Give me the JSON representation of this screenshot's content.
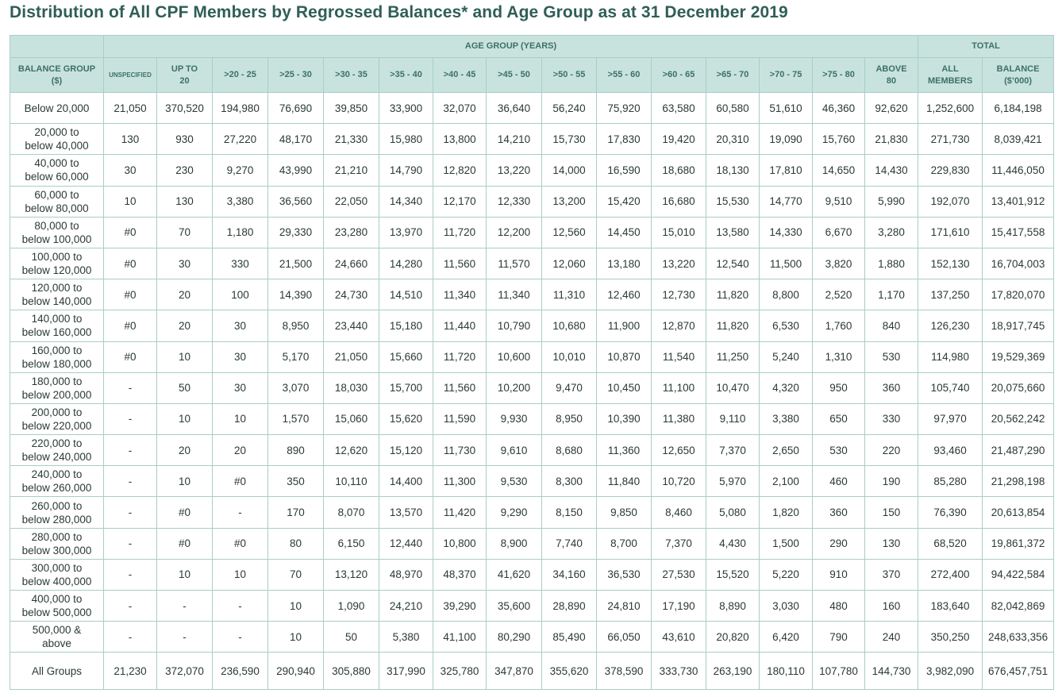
{
  "title": "Distribution of All CPF Members by Regrossed Balances* and Age Group as at 31 December 2019",
  "header": {
    "age_group": "AGE GROUP (YEARS)",
    "total": "TOTAL",
    "balance_group_line1": "BALANCE GROUP",
    "balance_group_line2": "($)",
    "columns": [
      {
        "l1": "UNSPECIFIED",
        "l2": ""
      },
      {
        "l1": "UP TO",
        "l2": "20"
      },
      {
        "l1": ">20 - 25",
        "l2": ""
      },
      {
        "l1": ">25 - 30",
        "l2": ""
      },
      {
        "l1": ">30 - 35",
        "l2": ""
      },
      {
        "l1": ">35 - 40",
        "l2": ""
      },
      {
        "l1": ">40 - 45",
        "l2": ""
      },
      {
        "l1": ">45 - 50",
        "l2": ""
      },
      {
        "l1": ">50 - 55",
        "l2": ""
      },
      {
        "l1": ">55 - 60",
        "l2": ""
      },
      {
        "l1": ">60 - 65",
        "l2": ""
      },
      {
        "l1": ">65 - 70",
        "l2": ""
      },
      {
        "l1": ">70 - 75",
        "l2": ""
      },
      {
        "l1": ">75 - 80",
        "l2": ""
      },
      {
        "l1": "ABOVE",
        "l2": "80"
      },
      {
        "l1": "ALL",
        "l2": "MEMBERS"
      },
      {
        "l1": "BALANCE",
        "l2": "($’000)"
      }
    ]
  },
  "rows": [
    {
      "label1": "Below 20,000",
      "label2": "",
      "values": [
        "21,050",
        "370,520",
        "194,980",
        "76,690",
        "39,850",
        "33,900",
        "32,070",
        "36,640",
        "56,240",
        "75,920",
        "63,580",
        "60,580",
        "51,610",
        "46,360",
        "92,620",
        "1,252,600",
        "6,184,198"
      ]
    },
    {
      "label1": "20,000 to",
      "label2": "below 40,000",
      "values": [
        "130",
        "930",
        "27,220",
        "48,170",
        "21,330",
        "15,980",
        "13,800",
        "14,210",
        "15,730",
        "17,830",
        "19,420",
        "20,310",
        "19,090",
        "15,760",
        "21,830",
        "271,730",
        "8,039,421"
      ]
    },
    {
      "label1": "40,000 to",
      "label2": "below 60,000",
      "values": [
        "30",
        "230",
        "9,270",
        "43,990",
        "21,210",
        "14,790",
        "12,820",
        "13,220",
        "14,000",
        "16,590",
        "18,680",
        "18,130",
        "17,810",
        "14,650",
        "14,430",
        "229,830",
        "11,446,050"
      ]
    },
    {
      "label1": "60,000 to",
      "label2": "below 80,000",
      "values": [
        "10",
        "130",
        "3,380",
        "36,560",
        "22,050",
        "14,340",
        "12,170",
        "12,330",
        "13,200",
        "15,420",
        "16,680",
        "15,530",
        "14,770",
        "9,510",
        "5,990",
        "192,070",
        "13,401,912"
      ]
    },
    {
      "label1": "80,000 to",
      "label2": "below 100,000",
      "values": [
        "#0",
        "70",
        "1,180",
        "29,330",
        "23,280",
        "13,970",
        "11,720",
        "12,200",
        "12,560",
        "14,450",
        "15,010",
        "13,580",
        "14,330",
        "6,670",
        "3,280",
        "171,610",
        "15,417,558"
      ]
    },
    {
      "label1": "100,000 to",
      "label2": "below 120,000",
      "values": [
        "#0",
        "30",
        "330",
        "21,500",
        "24,660",
        "14,280",
        "11,560",
        "11,570",
        "12,060",
        "13,180",
        "13,220",
        "12,540",
        "11,500",
        "3,820",
        "1,880",
        "152,130",
        "16,704,003"
      ]
    },
    {
      "label1": "120,000 to",
      "label2": "below 140,000",
      "values": [
        "#0",
        "20",
        "100",
        "14,390",
        "24,730",
        "14,510",
        "11,340",
        "11,340",
        "11,310",
        "12,460",
        "12,730",
        "11,820",
        "8,800",
        "2,520",
        "1,170",
        "137,250",
        "17,820,070"
      ]
    },
    {
      "label1": "140,000 to",
      "label2": "below 160,000",
      "values": [
        "#0",
        "20",
        "30",
        "8,950",
        "23,440",
        "15,180",
        "11,440",
        "10,790",
        "10,680",
        "11,900",
        "12,870",
        "11,820",
        "6,530",
        "1,760",
        "840",
        "126,230",
        "18,917,745"
      ]
    },
    {
      "label1": "160,000 to",
      "label2": "below 180,000",
      "values": [
        "#0",
        "10",
        "30",
        "5,170",
        "21,050",
        "15,660",
        "11,720",
        "10,600",
        "10,010",
        "10,870",
        "11,540",
        "11,250",
        "5,240",
        "1,310",
        "530",
        "114,980",
        "19,529,369"
      ]
    },
    {
      "label1": "180,000 to",
      "label2": "below 200,000",
      "values": [
        "-",
        "50",
        "30",
        "3,070",
        "18,030",
        "15,700",
        "11,560",
        "10,200",
        "9,470",
        "10,450",
        "11,100",
        "10,470",
        "4,320",
        "950",
        "360",
        "105,740",
        "20,075,660"
      ]
    },
    {
      "label1": "200,000 to",
      "label2": "below 220,000",
      "values": [
        "-",
        "10",
        "10",
        "1,570",
        "15,060",
        "15,620",
        "11,590",
        "9,930",
        "8,950",
        "10,390",
        "11,380",
        "9,110",
        "3,380",
        "650",
        "330",
        "97,970",
        "20,562,242"
      ]
    },
    {
      "label1": "220,000 to",
      "label2": "below 240,000",
      "values": [
        "-",
        "20",
        "20",
        "890",
        "12,620",
        "15,120",
        "11,730",
        "9,610",
        "8,680",
        "11,360",
        "12,650",
        "7,370",
        "2,650",
        "530",
        "220",
        "93,460",
        "21,487,290"
      ]
    },
    {
      "label1": "240,000 to",
      "label2": "below 260,000",
      "values": [
        "-",
        "10",
        "#0",
        "350",
        "10,110",
        "14,400",
        "11,300",
        "9,530",
        "8,300",
        "11,840",
        "10,720",
        "5,970",
        "2,100",
        "460",
        "190",
        "85,280",
        "21,298,198"
      ]
    },
    {
      "label1": "260,000 to",
      "label2": "below 280,000",
      "values": [
        "-",
        "#0",
        "-",
        "170",
        "8,070",
        "13,570",
        "11,420",
        "9,290",
        "8,150",
        "9,850",
        "8,460",
        "5,080",
        "1,820",
        "360",
        "150",
        "76,390",
        "20,613,854"
      ]
    },
    {
      "label1": "280,000 to",
      "label2": "below 300,000",
      "values": [
        "-",
        "#0",
        "#0",
        "80",
        "6,150",
        "12,440",
        "10,800",
        "8,900",
        "7,740",
        "8,700",
        "7,370",
        "4,430",
        "1,500",
        "290",
        "130",
        "68,520",
        "19,861,372"
      ]
    },
    {
      "label1": "300,000 to",
      "label2": "below 400,000",
      "values": [
        "-",
        "10",
        "10",
        "70",
        "13,120",
        "48,970",
        "48,370",
        "41,620",
        "34,160",
        "36,530",
        "27,530",
        "15,520",
        "5,220",
        "910",
        "370",
        "272,400",
        "94,422,584"
      ]
    },
    {
      "label1": "400,000 to",
      "label2": "below 500,000",
      "values": [
        "-",
        "-",
        "-",
        "10",
        "1,090",
        "24,210",
        "39,290",
        "35,600",
        "28,890",
        "24,810",
        "17,190",
        "8,890",
        "3,030",
        "480",
        "160",
        "183,640",
        "82,042,869"
      ]
    },
    {
      "label1": "500,000 &",
      "label2": "above",
      "values": [
        "-",
        "-",
        "-",
        "10",
        "50",
        "5,380",
        "41,100",
        "80,290",
        "85,490",
        "66,050",
        "43,610",
        "20,820",
        "6,420",
        "790",
        "240",
        "350,250",
        "248,633,356"
      ]
    },
    {
      "label1": "All Groups",
      "label2": "",
      "values": [
        "21,230",
        "372,070",
        "236,590",
        "290,940",
        "305,880",
        "317,990",
        "325,780",
        "347,870",
        "355,620",
        "378,590",
        "333,730",
        "263,190",
        "180,110",
        "107,780",
        "144,730",
        "3,982,090",
        "676,457,751"
      ]
    }
  ]
}
